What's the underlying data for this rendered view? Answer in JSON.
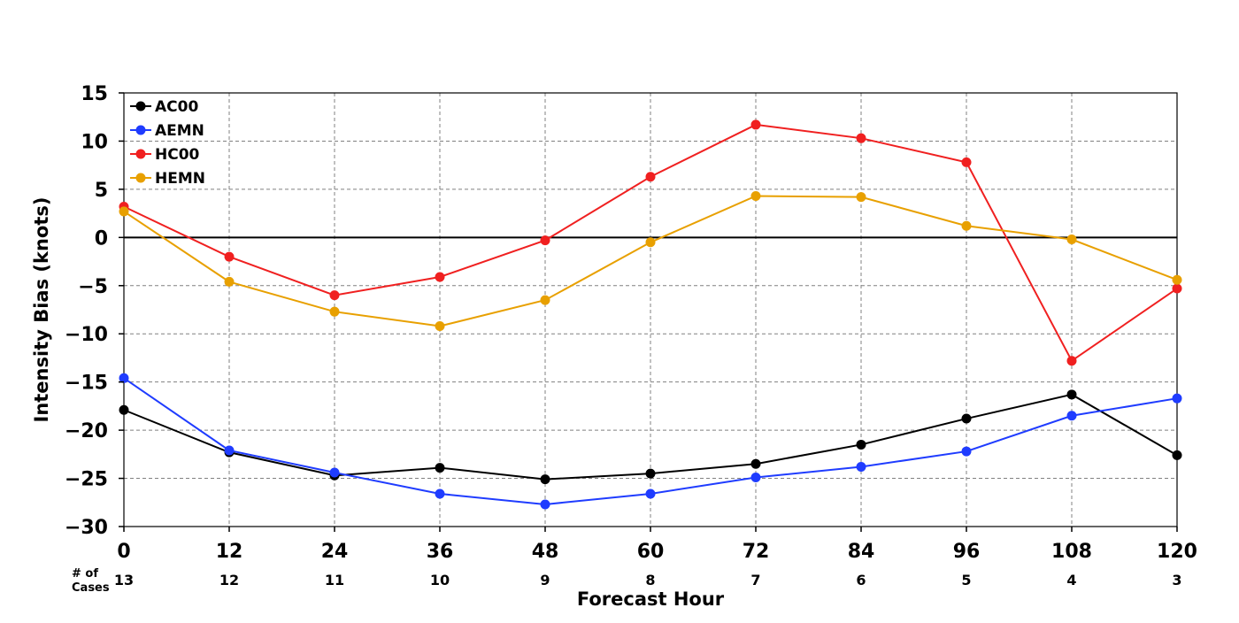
{
  "chart_data": {
    "type": "line",
    "title": "",
    "xlabel": "Forecast Hour",
    "ylabel": "Intensity Bias (knots)",
    "x": [
      0,
      12,
      24,
      36,
      48,
      60,
      72,
      84,
      96,
      108,
      120
    ],
    "xlim": [
      0,
      120
    ],
    "ylim": [
      -30,
      15
    ],
    "x_ticks": [
      "0",
      "12",
      "24",
      "36",
      "48",
      "60",
      "72",
      "84",
      "96",
      "108",
      "120"
    ],
    "y_ticks": [
      "15",
      "10",
      "5",
      "0",
      "−5",
      "−10",
      "−15",
      "−20",
      "−25",
      "−30"
    ],
    "y_tick_values": [
      15,
      10,
      5,
      0,
      -5,
      -10,
      -15,
      -20,
      -25,
      -30
    ],
    "cases_label": "# of\nCases",
    "cases": [
      "13",
      "12",
      "11",
      "10",
      "9",
      "8",
      "7",
      "6",
      "5",
      "4",
      "3"
    ],
    "grid": true,
    "legend_position": "top-left",
    "series": [
      {
        "name": "AC00",
        "color": "#000000",
        "values": [
          -17.9,
          -22.3,
          -24.7,
          -23.9,
          -25.1,
          -24.5,
          -23.5,
          -21.5,
          -18.8,
          -16.3,
          -22.6
        ]
      },
      {
        "name": "AEMN",
        "color": "#1f3cff",
        "values": [
          -14.6,
          -22.1,
          -24.4,
          -26.6,
          -27.7,
          -26.6,
          -24.9,
          -23.8,
          -22.2,
          -18.5,
          -16.7
        ]
      },
      {
        "name": "HC00",
        "color": "#f02020",
        "values": [
          3.2,
          -2.0,
          -6.0,
          -4.1,
          -0.3,
          6.3,
          11.7,
          10.3,
          7.8,
          -12.8,
          -5.3
        ]
      },
      {
        "name": "HEMN",
        "color": "#e8a000",
        "values": [
          2.7,
          -4.6,
          -7.7,
          -9.2,
          -6.5,
          -0.5,
          4.3,
          4.2,
          1.2,
          -0.2,
          -4.4
        ]
      }
    ]
  }
}
